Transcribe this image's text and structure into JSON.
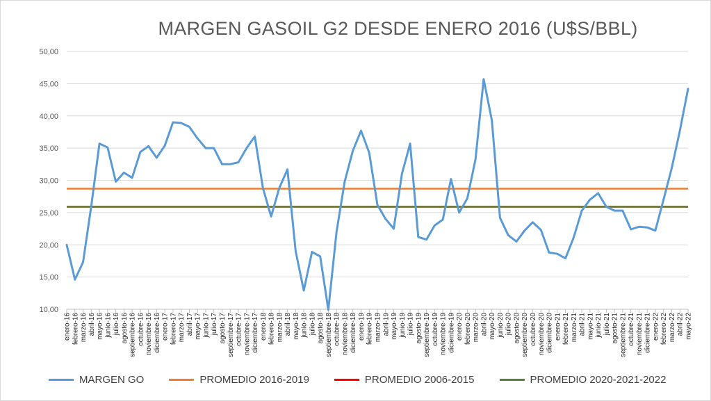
{
  "colors": {
    "margen_go": "#5b9bd5",
    "promedio_2016_2019": "#ed7d31",
    "promedio_2006_2015": "#ff0000",
    "promedio_2020_2022": "#548235",
    "grid": "#d9d9d9",
    "axis": "#bfbfbf"
  },
  "chart_data": {
    "type": "line",
    "title": "MARGEN GASOIL G2 DESDE ENERO 2016 (U$S/BBL)",
    "xlabel": "",
    "ylabel": "",
    "ylim": [
      10,
      50
    ],
    "yticks": [
      "10,00",
      "15,00",
      "20,00",
      "25,00",
      "30,00",
      "35,00",
      "40,00",
      "45,00",
      "50,00"
    ],
    "grid": true,
    "legend_position": "bottom",
    "categories": [
      "enero-16",
      "febrero-16",
      "marzo-16",
      "abril-16",
      "mayo-16",
      "junio-16",
      "julio-16",
      "agosto-16",
      "septiembre-16",
      "octubre-16",
      "noviembre-16",
      "diciembre-16",
      "enero-17",
      "febrero-17",
      "marzo-17",
      "abril-17",
      "mayo-17",
      "junio-17",
      "julio-17",
      "agosto-17",
      "septiembre-17",
      "octubre-17",
      "noviembre-17",
      "diciembre-17",
      "enero-18",
      "febrero-18",
      "marzo-18",
      "abril-18",
      "mayo-18",
      "junio-18",
      "julio-18",
      "agosto-18",
      "septiembre-18",
      "octubre-18",
      "noviembre-18",
      "diciembre-18",
      "enero-19",
      "febrero-19",
      "marzo-19",
      "abril-19",
      "mayo-19",
      "junio-19",
      "julio-19",
      "agosto-19",
      "septiembre-19",
      "octubre-19",
      "noviembre-19",
      "diciembre-19",
      "enero-20",
      "febrero-20",
      "marzo-20",
      "abril-20",
      "mayo-20",
      "junio-20",
      "julio-20",
      "agosto-20",
      "septiembre-20",
      "octubre-20",
      "noviembre-20",
      "diciembre-20",
      "enero-21",
      "febrero-21",
      "marzo-21",
      "abril-21",
      "mayo-21",
      "junio-21",
      "julio-21",
      "agosto-21",
      "septiembre-21",
      "octubre-21",
      "noviembre-21",
      "diciembre-21",
      "enero-22",
      "febrero-22",
      "marzo-22",
      "abril-22",
      "mayo-22"
    ],
    "series": [
      {
        "name": "MARGEN GO",
        "color_key": "margen_go",
        "values": [
          20.0,
          14.6,
          17.3,
          26.0,
          35.7,
          35.1,
          29.8,
          31.2,
          30.4,
          34.4,
          35.3,
          33.5,
          35.4,
          39.0,
          38.9,
          38.3,
          36.5,
          35.0,
          35.0,
          32.5,
          32.5,
          32.8,
          35.0,
          36.8,
          28.8,
          24.4,
          28.8,
          31.7,
          19.0,
          12.9,
          18.9,
          18.2,
          9.9,
          22.0,
          29.8,
          34.6,
          37.7,
          34.3,
          26.2,
          24.0,
          22.5,
          31.0,
          35.7,
          21.2,
          20.8,
          23.0,
          23.9,
          30.2,
          25.0,
          27.2,
          33.3,
          45.7,
          39.3,
          24.2,
          21.5,
          20.5,
          22.2,
          23.5,
          22.3,
          18.8,
          18.6,
          17.9,
          21.1,
          25.3,
          27.0,
          28.0,
          25.9,
          25.3,
          25.3,
          22.4,
          22.8,
          22.7,
          22.2,
          27.0,
          31.9,
          37.7,
          44.2
        ]
      },
      {
        "name": "PROMEDIO 2016-2019",
        "color_key": "promedio_2016_2019",
        "constant": 28.7
      },
      {
        "name": "PROMEDIO 2006-2015",
        "color_key": "promedio_2006_2015",
        "constant": 25.9
      },
      {
        "name": "PROMEDIO 2020-2021-2022",
        "color_key": "promedio_2020_2022",
        "constant": 25.9
      }
    ]
  },
  "legend": {
    "items": [
      {
        "label": "MARGEN GO",
        "color_key": "margen_go"
      },
      {
        "label": "PROMEDIO 2016-2019",
        "color_key": "promedio_2016_2019"
      },
      {
        "label": "PROMEDIO 2006-2015",
        "color_key": "promedio_2006_2015"
      },
      {
        "label": "PROMEDIO 2020-2021-2022",
        "color_key": "promedio_2020_2022"
      }
    ]
  }
}
